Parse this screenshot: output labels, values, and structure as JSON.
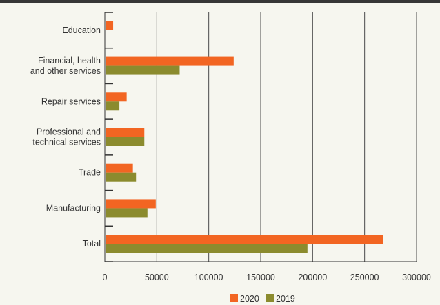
{
  "chart_data": {
    "type": "bar",
    "orientation": "horizontal",
    "categories": [
      [
        "Education"
      ],
      [
        "Financial, health",
        "and other services"
      ],
      [
        "Repair services"
      ],
      [
        "Professional and",
        "technical services"
      ],
      [
        "Trade"
      ],
      [
        "Manufacturing"
      ],
      [
        "Total"
      ]
    ],
    "series": [
      {
        "name": "2020",
        "color": "#f26522",
        "values": [
          8000,
          124000,
          21000,
          38000,
          27000,
          49000,
          268000
        ]
      },
      {
        "name": "2019",
        "color": "#8b8b2e",
        "values": [
          1000,
          72000,
          14000,
          38000,
          30000,
          41000,
          195000
        ]
      }
    ],
    "xlim": [
      0,
      300000
    ],
    "xticks": [
      "0",
      "50000",
      "100000",
      "150000",
      "200000",
      "250000",
      "300000"
    ],
    "xtick_values": [
      0,
      50000,
      100000,
      150000,
      200000,
      250000,
      300000
    ],
    "grid": "vertical",
    "legend_position": "bottom"
  }
}
